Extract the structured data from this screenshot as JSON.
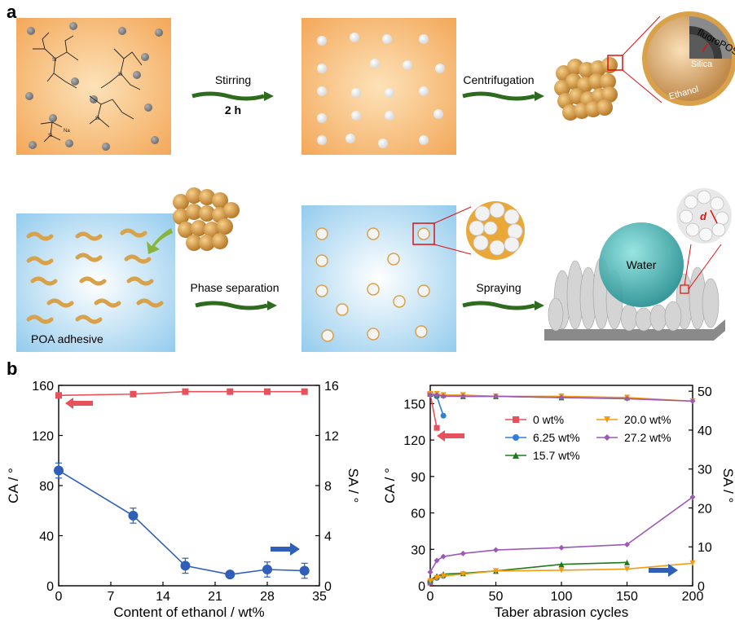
{
  "panel_a": {
    "letter": "a",
    "row1": {
      "step1_label": "Stirring",
      "step1_time": "2 h",
      "step2_label": "Centrifugation",
      "shell_outer": "fluoroPOS",
      "core": "Silica",
      "shell_inner": "Ethanol"
    },
    "row2": {
      "box1_caption": "POA adhesive",
      "step3_label": "Phase separation",
      "step4_label": "Spraying",
      "droplet_label": "Water",
      "zoom_label": "d"
    }
  },
  "panel_b": {
    "letter": "b"
  },
  "colors": {
    "red": "#e8505b",
    "blue": "#2f5fb8",
    "orange": "#f39c12",
    "green": "#1e7a1e",
    "purple": "#9b59b6",
    "arrow_green": "#2e6b1f"
  },
  "chart_data": [
    {
      "type": "line",
      "xlabel": "Content of ethanol / wt%",
      "ylabel": "CA / °",
      "ylabel_right": "SA / °",
      "xticks": [
        "0",
        "7",
        "14",
        "21",
        "28",
        "35"
      ],
      "yticks": [
        "0",
        "40",
        "80",
        "120",
        "160"
      ],
      "yticks_right": [
        "0",
        "4",
        "8",
        "12",
        "16"
      ],
      "xlim": [
        0,
        35
      ],
      "ylim": [
        0,
        160
      ],
      "ylim_right": [
        0,
        16
      ],
      "series": [
        {
          "axis": "left",
          "color": "#e8505b",
          "marker": "square",
          "x": [
            0,
            10,
            17,
            23,
            28,
            33
          ],
          "y": [
            152,
            153,
            155,
            155,
            155,
            155
          ]
        },
        {
          "axis": "right",
          "color": "#2f5fb8",
          "marker": "circle",
          "x": [
            0,
            10,
            17,
            23,
            28,
            33
          ],
          "y": [
            9.2,
            5.6,
            1.6,
            0.9,
            1.3,
            1.2
          ],
          "err": [
            0.6,
            0.6,
            0.6,
            0.2,
            0.6,
            0.6
          ]
        }
      ]
    },
    {
      "type": "line",
      "xlabel": "Taber abrasion cycles",
      "ylabel": "CA / °",
      "ylabel_right": "SA / °",
      "xticks": [
        "0",
        "50",
        "100",
        "150",
        "200"
      ],
      "yticks": [
        "0",
        "30",
        "60",
        "90",
        "120",
        "150"
      ],
      "yticks_right": [
        "0",
        "10",
        "20",
        "30",
        "40",
        "50"
      ],
      "xlim": [
        0,
        200
      ],
      "ylim": [
        0,
        165
      ],
      "ylim_right": [
        0,
        51.5
      ],
      "legend": [
        "0 wt%",
        "6.25 wt%",
        "15.7 wt%",
        "20.0 wt%",
        "27.2 wt%"
      ],
      "series": [
        {
          "name": "0 wt%",
          "color": "#e8505b",
          "marker": "square",
          "ca": {
            "x": [
              0,
              5
            ],
            "y": [
              158,
              130
            ]
          },
          "sa": {
            "x": [
              0
            ],
            "y": [
              0.8
            ]
          }
        },
        {
          "name": "6.25 wt%",
          "color": "#2f7fd8",
          "marker": "circle",
          "ca": {
            "x": [
              0,
              5,
              10
            ],
            "y": [
              158,
              156,
              140
            ]
          },
          "sa": {
            "x": [
              0,
              5,
              10
            ],
            "y": [
              1.0,
              2.0,
              2.5
            ]
          }
        },
        {
          "name": "15.7 wt%",
          "color": "#1e7a1e",
          "marker": "triangle-up",
          "ca": {
            "x": [
              0,
              5,
              10,
              25,
              50,
              100,
              150
            ],
            "y": [
              158,
              157,
              157,
              156,
              156,
              155,
              155
            ]
          },
          "sa": {
            "x": [
              0,
              5,
              10,
              25,
              50,
              100,
              150
            ],
            "y": [
              1.5,
              2.5,
              3.0,
              3.2,
              3.8,
              5.5,
              6.0
            ]
          }
        },
        {
          "name": "20.0 wt%",
          "color": "#f39c12",
          "marker": "triangle-down",
          "ca": {
            "x": [
              0,
              5,
              10,
              25,
              50,
              100,
              150,
              200
            ],
            "y": [
              158,
              158,
              157,
              157,
              156,
              156,
              155,
              152
            ]
          },
          "sa": {
            "x": [
              0,
              5,
              10,
              25,
              50,
              100,
              150,
              200
            ],
            "y": [
              1.2,
              2.0,
              2.5,
              3.0,
              3.8,
              4.0,
              4.3,
              5.8
            ]
          }
        },
        {
          "name": "27.2 wt%",
          "color": "#9b59b6",
          "marker": "diamond",
          "ca": {
            "x": [
              0,
              5,
              10,
              25,
              50,
              100,
              150,
              200
            ],
            "y": [
              157,
              157,
              156,
              156,
              156,
              155,
              154,
              152
            ]
          },
          "sa": {
            "x": [
              0,
              5,
              10,
              25,
              50,
              100,
              150,
              200
            ],
            "y": [
              3.5,
              6.5,
              7.5,
              8.3,
              9.2,
              9.8,
              10.6,
              22.8
            ]
          }
        }
      ]
    }
  ]
}
